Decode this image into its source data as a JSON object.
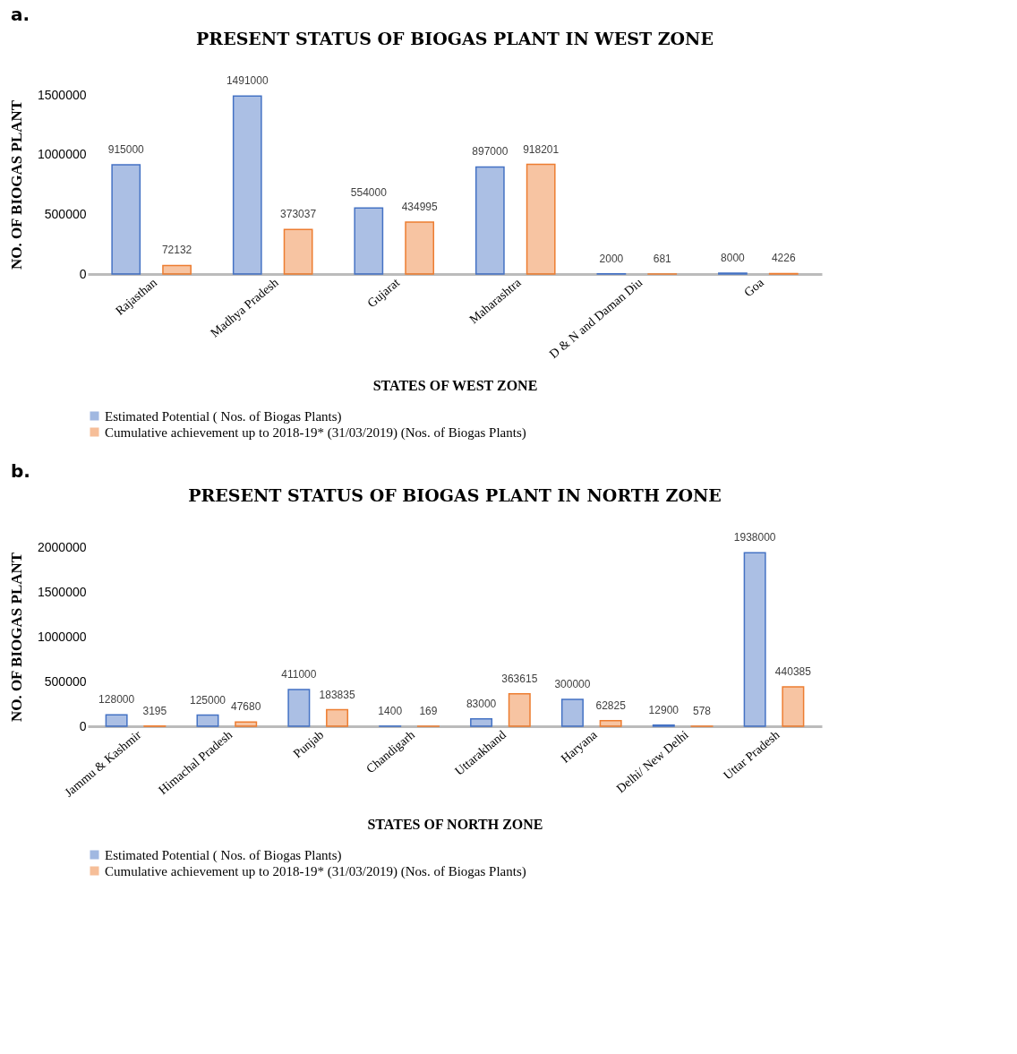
{
  "chart_data": [
    {
      "type": "bar",
      "annotations": [
        "a."
      ],
      "title": "PRESENT STATUS OF BIOGAS PLANT IN WEST ZONE",
      "xlabel": "STATES OF WEST ZONE",
      "ylabel": "NO. OF BIOGAS PLANT",
      "categories": [
        "Rajasthan",
        "Madhya Pradesh",
        "Gujarat",
        "Maharashtra",
        "D & N and Daman Diu",
        "Goa"
      ],
      "series": [
        {
          "name": "Estimated Potential ( Nos. of Biogas Plants)",
          "color": "#4472c4",
          "values": [
            915000,
            1491000,
            554000,
            897000,
            2000,
            8000
          ]
        },
        {
          "name": "Cumulative achievement up to 2018-19* (31/03/2019) (Nos. of Biogas Plants)",
          "color": "#ed7d31",
          "values": [
            72132,
            373037,
            434995,
            918201,
            681,
            4226
          ]
        }
      ],
      "ylim": [
        0,
        1500000
      ],
      "yticks": [
        0,
        500000,
        1000000,
        1500000
      ],
      "data_labels": true,
      "legend": "bottom"
    },
    {
      "type": "bar",
      "annotations": [
        "b."
      ],
      "title": "PRESENT STATUS OF BIOGAS PLANT IN NORTH ZONE",
      "xlabel": "STATES OF NORTH ZONE",
      "ylabel": "NO. OF BIOGAS PLANT",
      "categories": [
        "Jammu & Kashmir",
        "Himachal Pradesh",
        "Punjab",
        "Chandigarh",
        "Uttarakhand",
        "Haryana",
        "Delhi/ New Delhi",
        "Uttar Pradesh"
      ],
      "series": [
        {
          "name": "Estimated Potential ( Nos. of Biogas Plants)",
          "color": "#4472c4",
          "values": [
            128000,
            125000,
            411000,
            1400,
            83000,
            300000,
            12900,
            1938000
          ]
        },
        {
          "name": "Cumulative achievement up to 2018-19* (31/03/2019) (Nos. of Biogas Plants)",
          "color": "#ed7d31",
          "values": [
            3195,
            47680,
            183835,
            169,
            363615,
            62825,
            578,
            440385
          ]
        }
      ],
      "ylim": [
        0,
        2000000
      ],
      "yticks": [
        0,
        500000,
        1000000,
        1500000,
        2000000
      ],
      "data_labels": true,
      "legend": "bottom"
    }
  ]
}
